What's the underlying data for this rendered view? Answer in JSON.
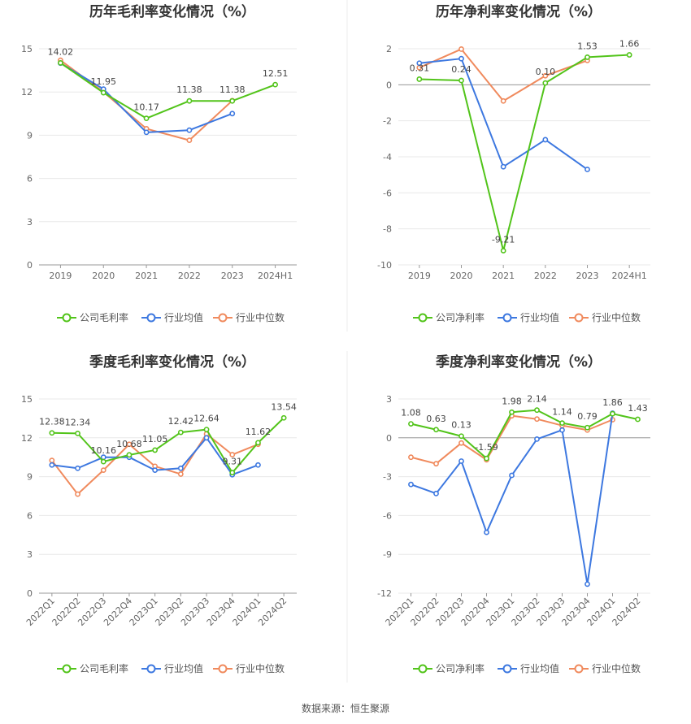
{
  "source": "数据来源：恒生聚源",
  "colors": {
    "company": "#52c41a",
    "avg": "#3d78e0",
    "median": "#f08a5d"
  },
  "chart_data": [
    {
      "type": "line",
      "title": "历年毛利率变化情况（%）",
      "categories": [
        "2019",
        "2020",
        "2021",
        "2022",
        "2023",
        "2024H1"
      ],
      "ylim": [
        0,
        15
      ],
      "yticks": [
        0,
        3,
        6,
        9,
        12,
        15
      ],
      "rotate_x": false,
      "series": [
        {
          "name": "公司毛利率",
          "key": "company",
          "values": [
            14.02,
            11.95,
            10.17,
            11.38,
            11.38,
            12.51
          ],
          "labels": [
            "14.02",
            "11.95",
            "10.17",
            "11.38",
            "11.38",
            "12.51"
          ]
        },
        {
          "name": "行业均值",
          "key": "avg",
          "values": [
            14.0,
            12.2,
            9.2,
            9.35,
            10.5,
            null
          ]
        },
        {
          "name": "行业中位数",
          "key": "median",
          "values": [
            14.2,
            12.0,
            9.45,
            8.65,
            11.4,
            null
          ]
        }
      ]
    },
    {
      "type": "line",
      "title": "历年净利率变化情况（%）",
      "categories": [
        "2019",
        "2020",
        "2021",
        "2022",
        "2023",
        "2024H1"
      ],
      "ylim": [
        -10,
        2
      ],
      "yticks": [
        -10,
        -8,
        -6,
        -4,
        -2,
        0,
        2
      ],
      "rotate_x": false,
      "series": [
        {
          "name": "公司净利率",
          "key": "company",
          "values": [
            0.31,
            0.24,
            -9.21,
            0.1,
            1.53,
            1.66
          ],
          "labels": [
            "0.31",
            "0.24",
            "-9.21",
            "0.10",
            "1.53",
            "1.66"
          ]
        },
        {
          "name": "行业均值",
          "key": "avg",
          "values": [
            1.2,
            1.45,
            -4.55,
            -3.05,
            -4.7,
            null
          ]
        },
        {
          "name": "行业中位数",
          "key": "median",
          "values": [
            0.95,
            1.98,
            -0.9,
            0.5,
            1.35,
            null
          ]
        }
      ]
    },
    {
      "type": "line",
      "title": "季度毛利率变化情况（%）",
      "categories": [
        "2022Q1",
        "2022Q2",
        "2022Q3",
        "2022Q4",
        "2023Q1",
        "2023Q2",
        "2023Q3",
        "2023Q4",
        "2024Q1",
        "2024Q2"
      ],
      "ylim": [
        0,
        15
      ],
      "yticks": [
        0,
        3,
        6,
        9,
        12,
        15
      ],
      "rotate_x": true,
      "series": [
        {
          "name": "公司毛利率",
          "key": "company",
          "values": [
            12.38,
            12.34,
            10.16,
            10.68,
            11.05,
            12.42,
            12.64,
            9.31,
            11.62,
            13.54
          ],
          "labels": [
            "12.38",
            "12.34",
            "10.16",
            "10.68",
            "11.05",
            "12.42",
            "12.64",
            "9.31",
            "11.62",
            "13.54"
          ]
        },
        {
          "name": "行业均值",
          "key": "avg",
          "values": [
            9.9,
            9.65,
            10.5,
            10.5,
            9.5,
            9.65,
            12.0,
            9.15,
            9.9,
            null
          ]
        },
        {
          "name": "行业中位数",
          "key": "median",
          "values": [
            10.25,
            7.65,
            9.5,
            11.5,
            9.8,
            9.2,
            12.3,
            10.7,
            11.5,
            null
          ]
        }
      ]
    },
    {
      "type": "line",
      "title": "季度净利率变化情况（%）",
      "categories": [
        "2022Q1",
        "2022Q2",
        "2022Q3",
        "2022Q4",
        "2023Q1",
        "2023Q2",
        "2023Q3",
        "2023Q4",
        "2024Q1",
        "2024Q2"
      ],
      "ylim": [
        -12,
        3
      ],
      "yticks": [
        -12,
        -9,
        -6,
        -3,
        0,
        3
      ],
      "rotate_x": true,
      "series": [
        {
          "name": "公司净利率",
          "key": "company",
          "values": [
            1.08,
            0.63,
            0.13,
            -1.59,
            1.98,
            2.14,
            1.14,
            0.79,
            1.86,
            1.43
          ],
          "labels": [
            "1.08",
            "0.63",
            "0.13",
            "-1.59",
            "1.98",
            "2.14",
            "1.14",
            "0.79",
            "1.86",
            "1.43"
          ]
        },
        {
          "name": "行业均值",
          "key": "avg",
          "values": [
            -3.6,
            -4.3,
            -1.8,
            -7.3,
            -2.9,
            -0.1,
            0.6,
            -11.3,
            1.9,
            null
          ]
        },
        {
          "name": "行业中位数",
          "key": "median",
          "values": [
            -1.5,
            -2.0,
            -0.4,
            -1.7,
            1.7,
            1.45,
            0.95,
            0.6,
            1.4,
            null
          ]
        }
      ]
    }
  ]
}
